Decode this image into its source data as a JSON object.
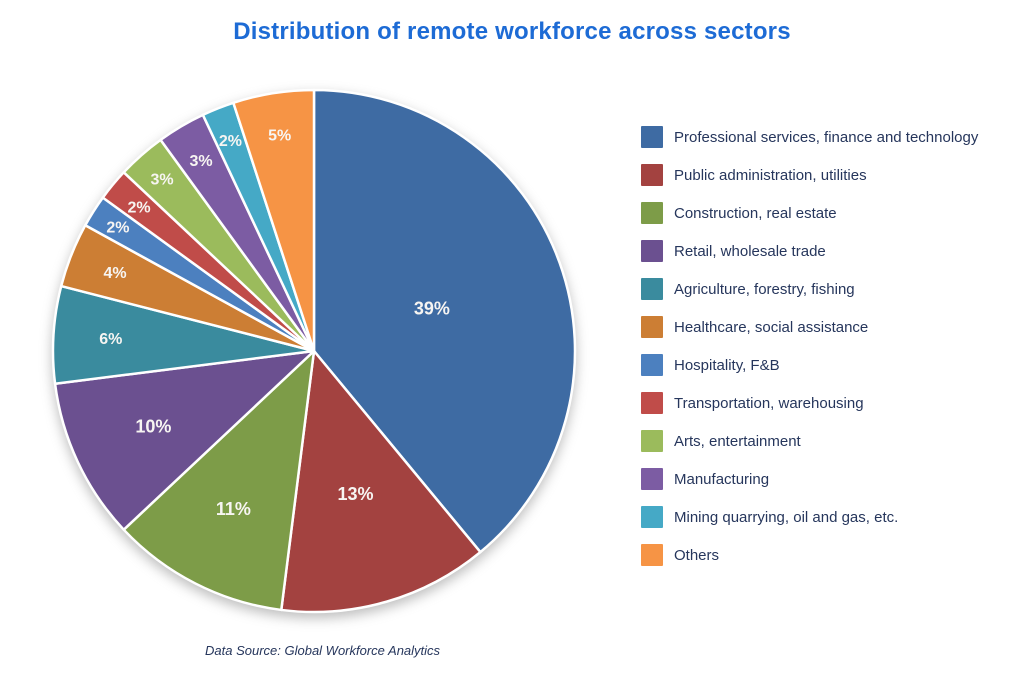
{
  "chart_data": {
    "type": "pie",
    "title": "Distribution of remote workforce across sectors",
    "title_color": "#1d6bd5",
    "source_note": "Data Source: Global Workforce Analytics",
    "legend_position": "right",
    "start_angle_deg": 0,
    "direction": "clockwise",
    "unit": "%",
    "text_color": "#26365c",
    "slice_label_color": "#f7f5f2",
    "slices": [
      {
        "legend": "Professional services, finance and technology",
        "value": 39,
        "pct_label": "39%",
        "color": "#3e6ba3"
      },
      {
        "legend": "Public administration, utilities",
        "value": 13,
        "pct_label": "13%",
        "color": "#a34240"
      },
      {
        "legend": "Construction, real estate",
        "value": 11,
        "pct_label": "11%",
        "color": "#7d9c48"
      },
      {
        "legend": "Retail, wholesale trade",
        "value": 10,
        "pct_label": "10%",
        "color": "#6b5090"
      },
      {
        "legend": "Agriculture, forestry, fishing",
        "value": 6,
        "pct_label": "6%",
        "color": "#3a8b9e"
      },
      {
        "legend": "Healthcare, social assistance",
        "value": 4,
        "pct_label": "4%",
        "color": "#cc7e34"
      },
      {
        "legend": "Hospitality, F&B",
        "value": 2,
        "pct_label": "2%",
        "color": "#4c80bf"
      },
      {
        "legend": "Transportation, warehousing",
        "value": 2,
        "pct_label": "2%",
        "color": "#c04c49"
      },
      {
        "legend": "Arts, entertainment",
        "value": 3,
        "pct_label": "3%",
        "color": "#9bbb5c"
      },
      {
        "legend": "Manufacturing",
        "value": 3,
        "pct_label": "3%",
        "color": "#7c5ca3"
      },
      {
        "legend": "Mining quarrying, oil and gas, etc.",
        "value": 2,
        "pct_label": "2%",
        "color": "#45a9c6"
      },
      {
        "legend": "Others",
        "value": 5,
        "pct_label": "5%",
        "color": "#f69445"
      }
    ]
  }
}
